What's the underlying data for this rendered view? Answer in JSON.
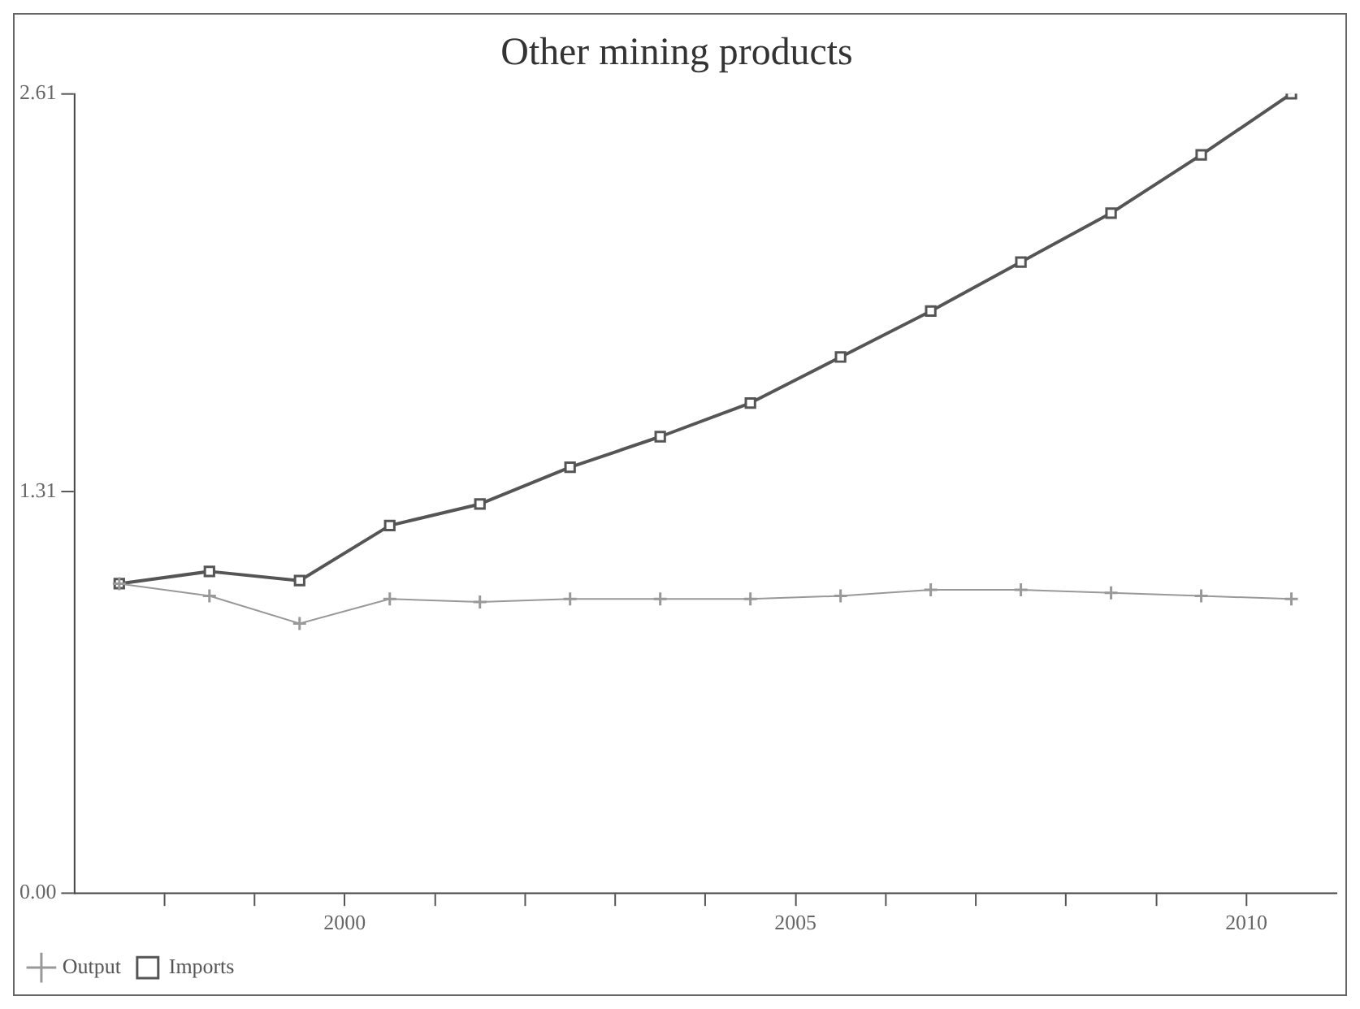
{
  "chart_data": {
    "type": "line",
    "title": "Other mining products",
    "x": [
      1997.5,
      1998.5,
      1999.5,
      2000.5,
      2001.5,
      2002.5,
      2003.5,
      2004.5,
      2005.5,
      2006.5,
      2007.5,
      2008.5,
      2009.5,
      2010.5
    ],
    "series": [
      {
        "name": "Output",
        "color": "#999999",
        "marker": "cross",
        "values": [
          1.01,
          0.97,
          0.88,
          0.96,
          0.95,
          0.96,
          0.96,
          0.96,
          0.97,
          0.99,
          0.99,
          0.98,
          0.97,
          0.96
        ]
      },
      {
        "name": "Imports",
        "color": "#555555",
        "marker": "square",
        "values": [
          1.01,
          1.05,
          1.02,
          1.2,
          1.27,
          1.39,
          1.49,
          1.6,
          1.75,
          1.9,
          2.06,
          2.22,
          2.41,
          2.61
        ]
      }
    ],
    "xlim": [
      1997,
      2011
    ],
    "xticks": [
      {
        "value": 1998,
        "label": null
      },
      {
        "value": 1999,
        "label": null
      },
      2000,
      {
        "value": 2001,
        "label": null
      },
      {
        "value": 2002,
        "label": null
      },
      {
        "value": 2003,
        "label": null
      },
      {
        "value": 2004,
        "label": null
      },
      2005,
      {
        "value": 2006,
        "label": null
      },
      {
        "value": 2007,
        "label": null
      },
      {
        "value": 2008,
        "label": null
      },
      {
        "value": 2009,
        "label": null
      },
      2010
    ],
    "ylim": [
      0,
      2.61
    ],
    "yticks": [
      {
        "value": 0,
        "label": "0.00"
      },
      1.31,
      2.61
    ],
    "grid": false,
    "legend": "bottom left",
    "line_style": "solid"
  }
}
